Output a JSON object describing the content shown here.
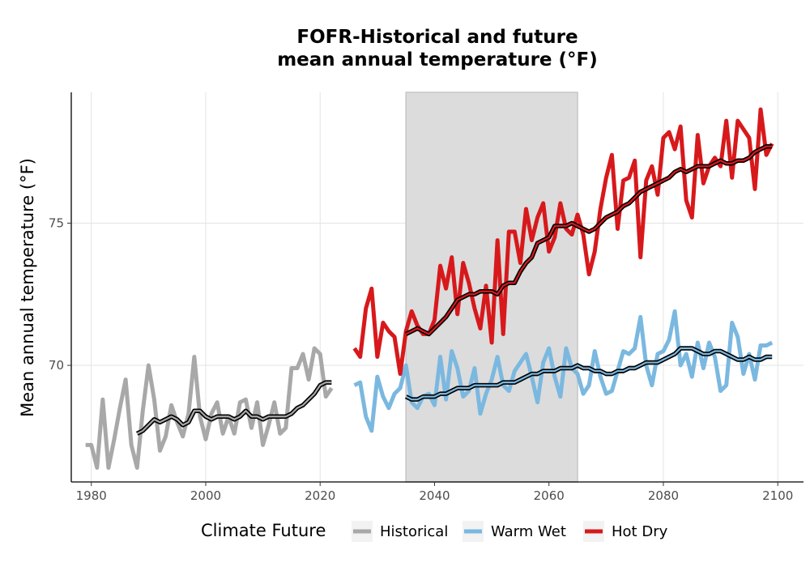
{
  "chart_data": {
    "type": "line",
    "title_line1": "FOFR-Historical and future",
    "title_line2": "mean annual temperature (°F)",
    "xlabel": "",
    "ylabel": "Mean annual temperature (°F)",
    "xlim": [
      1976.5,
      2104.5
    ],
    "ylim": [
      65.9,
      79.6
    ],
    "x_ticks": [
      1980,
      2000,
      2020,
      2040,
      2060,
      2080,
      2100
    ],
    "y_ticks": [
      70,
      75
    ],
    "grid": true,
    "shaded_period": [
      2035,
      2065
    ],
    "shaded_color": "#dcdcdc",
    "legend_title": "Climate Future",
    "legend_position": "bottom",
    "series": [
      {
        "name": "Historical",
        "color": "#a8a8a8",
        "x": [
          1979,
          1980,
          1981,
          1982,
          1983,
          1984,
          1985,
          1986,
          1987,
          1988,
          1989,
          1990,
          1991,
          1992,
          1993,
          1994,
          1995,
          1996,
          1997,
          1998,
          1999,
          2000,
          2001,
          2002,
          2003,
          2004,
          2005,
          2006,
          2007,
          2008,
          2009,
          2010,
          2011,
          2012,
          2013,
          2014,
          2015,
          2016,
          2017,
          2018,
          2019,
          2020,
          2021,
          2022
        ],
        "values": [
          67.2,
          67.2,
          66.4,
          68.8,
          66.4,
          67.4,
          68.5,
          69.5,
          67.2,
          66.4,
          68.4,
          70.0,
          68.8,
          67.0,
          67.5,
          68.6,
          68.0,
          67.5,
          68.3,
          70.3,
          68.2,
          67.4,
          68.3,
          68.7,
          67.6,
          68.2,
          67.6,
          68.7,
          68.8,
          67.8,
          68.7,
          67.2,
          67.9,
          68.7,
          67.6,
          67.8,
          69.9,
          69.9,
          70.4,
          69.5,
          70.6,
          70.4,
          68.9,
          69.2
        ],
        "ma_x": [
          1988,
          1989,
          1990,
          1991,
          1992,
          1993,
          1994,
          1995,
          1996,
          1997,
          1998,
          1999,
          2000,
          2001,
          2002,
          2003,
          2004,
          2005,
          2006,
          2007,
          2008,
          2009,
          2010,
          2011,
          2012,
          2013,
          2014,
          2015,
          2016,
          2017,
          2018,
          2019,
          2020,
          2021,
          2022
        ],
        "ma_values": [
          67.6,
          67.7,
          67.9,
          68.1,
          68.0,
          68.1,
          68.2,
          68.1,
          67.9,
          68.0,
          68.4,
          68.4,
          68.2,
          68.1,
          68.2,
          68.2,
          68.2,
          68.1,
          68.2,
          68.4,
          68.2,
          68.2,
          68.1,
          68.2,
          68.2,
          68.2,
          68.2,
          68.3,
          68.5,
          68.6,
          68.8,
          69.0,
          69.3,
          69.4,
          69.4
        ]
      },
      {
        "name": "Warm Wet",
        "color": "#7bb8e0",
        "x": [
          2026,
          2027,
          2028,
          2029,
          2030,
          2031,
          2032,
          2033,
          2034,
          2035,
          2036,
          2037,
          2038,
          2039,
          2040,
          2041,
          2042,
          2043,
          2044,
          2045,
          2046,
          2047,
          2048,
          2049,
          2050,
          2051,
          2052,
          2053,
          2054,
          2055,
          2056,
          2057,
          2058,
          2059,
          2060,
          2061,
          2062,
          2063,
          2064,
          2065,
          2066,
          2067,
          2068,
          2069,
          2070,
          2071,
          2072,
          2073,
          2074,
          2075,
          2076,
          2077,
          2078,
          2079,
          2080,
          2081,
          2082,
          2083,
          2084,
          2085,
          2086,
          2087,
          2088,
          2089,
          2090,
          2091,
          2092,
          2093,
          2094,
          2095,
          2096,
          2097,
          2098,
          2099
        ],
        "values": [
          69.3,
          69.4,
          68.2,
          67.7,
          69.6,
          68.9,
          68.5,
          69.0,
          69.2,
          70.0,
          68.7,
          68.5,
          68.9,
          69.0,
          68.6,
          70.3,
          68.8,
          70.5,
          69.9,
          68.9,
          69.1,
          69.9,
          68.3,
          69.0,
          69.5,
          70.3,
          69.3,
          69.1,
          69.8,
          70.1,
          70.4,
          69.6,
          68.7,
          70.1,
          70.6,
          69.6,
          68.9,
          70.6,
          69.9,
          69.7,
          69.0,
          69.3,
          70.5,
          69.6,
          69.0,
          69.1,
          69.8,
          70.5,
          70.4,
          70.6,
          71.7,
          70.0,
          69.3,
          70.4,
          70.5,
          70.9,
          71.9,
          70.0,
          70.4,
          69.6,
          70.8,
          69.9,
          70.8,
          70.3,
          69.1,
          69.3,
          71.5,
          71.0,
          69.7,
          70.4,
          69.5,
          70.7,
          70.7,
          70.8
        ],
        "ma_x": [
          2035,
          2036,
          2037,
          2038,
          2039,
          2040,
          2041,
          2042,
          2043,
          2044,
          2045,
          2046,
          2047,
          2048,
          2049,
          2050,
          2051,
          2052,
          2053,
          2054,
          2055,
          2056,
          2057,
          2058,
          2059,
          2060,
          2061,
          2062,
          2063,
          2064,
          2065,
          2066,
          2067,
          2068,
          2069,
          2070,
          2071,
          2072,
          2073,
          2074,
          2075,
          2076,
          2077,
          2078,
          2079,
          2080,
          2081,
          2082,
          2083,
          2084,
          2085,
          2086,
          2087,
          2088,
          2089,
          2090,
          2091,
          2092,
          2093,
          2094,
          2095,
          2096,
          2097,
          2098,
          2099
        ],
        "ma_values": [
          68.9,
          68.8,
          68.8,
          68.9,
          68.9,
          68.9,
          69.0,
          69.0,
          69.1,
          69.2,
          69.2,
          69.2,
          69.3,
          69.3,
          69.3,
          69.3,
          69.3,
          69.4,
          69.4,
          69.4,
          69.5,
          69.6,
          69.7,
          69.7,
          69.8,
          69.8,
          69.8,
          69.9,
          69.9,
          69.9,
          70.0,
          69.9,
          69.9,
          69.8,
          69.8,
          69.7,
          69.7,
          69.8,
          69.8,
          69.9,
          69.9,
          70.0,
          70.1,
          70.1,
          70.1,
          70.2,
          70.3,
          70.4,
          70.6,
          70.6,
          70.6,
          70.5,
          70.4,
          70.4,
          70.5,
          70.5,
          70.4,
          70.3,
          70.2,
          70.2,
          70.3,
          70.2,
          70.2,
          70.3,
          70.3
        ]
      },
      {
        "name": "Hot Dry",
        "color": "#d7191c",
        "x": [
          2026,
          2027,
          2028,
          2029,
          2030,
          2031,
          2032,
          2033,
          2034,
          2035,
          2036,
          2037,
          2038,
          2039,
          2040,
          2041,
          2042,
          2043,
          2044,
          2045,
          2046,
          2047,
          2048,
          2049,
          2050,
          2051,
          2052,
          2053,
          2054,
          2055,
          2056,
          2057,
          2058,
          2059,
          2060,
          2061,
          2062,
          2063,
          2064,
          2065,
          2066,
          2067,
          2068,
          2069,
          2070,
          2071,
          2072,
          2073,
          2074,
          2075,
          2076,
          2077,
          2078,
          2079,
          2080,
          2081,
          2082,
          2083,
          2084,
          2085,
          2086,
          2087,
          2088,
          2089,
          2090,
          2091,
          2092,
          2093,
          2094,
          2095,
          2096,
          2097,
          2098,
          2099
        ],
        "values": [
          70.6,
          70.3,
          72.0,
          72.7,
          70.3,
          71.5,
          71.2,
          71.0,
          69.7,
          71.2,
          71.9,
          71.4,
          71.1,
          71.1,
          71.6,
          73.5,
          72.7,
          73.8,
          71.8,
          73.6,
          72.9,
          72.0,
          71.3,
          72.8,
          70.8,
          74.4,
          71.1,
          74.7,
          74.7,
          73.6,
          75.5,
          74.4,
          75.2,
          75.7,
          74.0,
          74.5,
          75.7,
          74.8,
          74.6,
          75.3,
          74.6,
          73.2,
          74.0,
          75.5,
          76.6,
          77.4,
          74.8,
          76.5,
          76.6,
          77.2,
          73.8,
          76.5,
          77.0,
          76.0,
          78.0,
          78.2,
          77.6,
          78.4,
          75.8,
          75.2,
          78.1,
          76.4,
          77.0,
          77.3,
          77.0,
          78.6,
          76.6,
          78.6,
          78.3,
          78.0,
          76.2,
          79.0,
          77.4,
          77.8
        ],
        "ma_x": [
          2035,
          2036,
          2037,
          2038,
          2039,
          2040,
          2041,
          2042,
          2043,
          2044,
          2045,
          2046,
          2047,
          2048,
          2049,
          2050,
          2051,
          2052,
          2053,
          2054,
          2055,
          2056,
          2057,
          2058,
          2059,
          2060,
          2061,
          2062,
          2063,
          2064,
          2065,
          2066,
          2067,
          2068,
          2069,
          2070,
          2071,
          2072,
          2073,
          2074,
          2075,
          2076,
          2077,
          2078,
          2079,
          2080,
          2081,
          2082,
          2083,
          2084,
          2085,
          2086,
          2087,
          2088,
          2089,
          2090,
          2091,
          2092,
          2093,
          2094,
          2095,
          2096,
          2097,
          2098,
          2099
        ],
        "ma_values": [
          71.1,
          71.2,
          71.3,
          71.2,
          71.1,
          71.3,
          71.5,
          71.7,
          72.0,
          72.3,
          72.4,
          72.5,
          72.5,
          72.6,
          72.6,
          72.6,
          72.5,
          72.8,
          72.9,
          72.9,
          73.3,
          73.6,
          73.8,
          74.3,
          74.4,
          74.5,
          74.9,
          74.9,
          74.9,
          75.0,
          74.9,
          74.8,
          74.7,
          74.8,
          75.0,
          75.2,
          75.3,
          75.4,
          75.6,
          75.7,
          75.9,
          76.1,
          76.2,
          76.3,
          76.4,
          76.5,
          76.6,
          76.8,
          76.9,
          76.8,
          76.9,
          77.0,
          77.0,
          77.0,
          77.1,
          77.2,
          77.1,
          77.1,
          77.2,
          77.2,
          77.3,
          77.5,
          77.6,
          77.7,
          77.7
        ]
      }
    ]
  }
}
